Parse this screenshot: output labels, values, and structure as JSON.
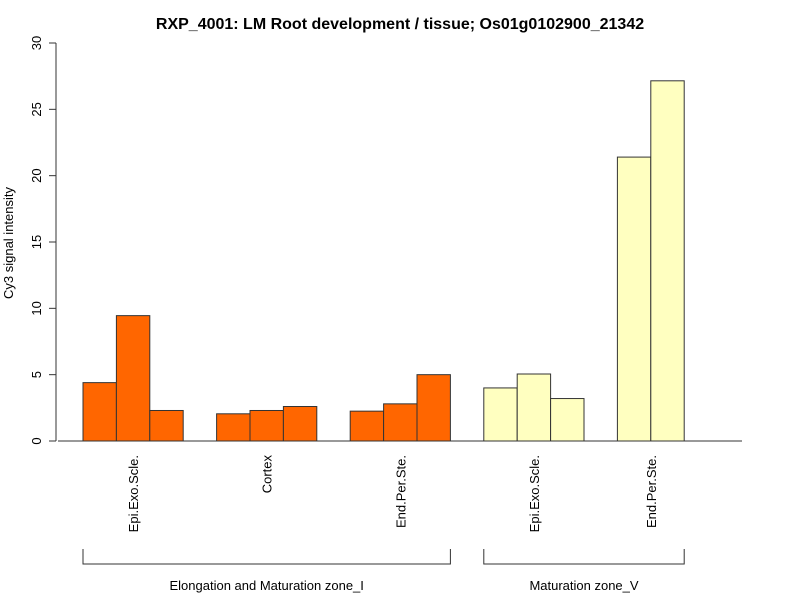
{
  "chart_data": {
    "type": "bar",
    "title": "RXP_4001: LM Root development / tissue; Os01g0102900_21342",
    "ylabel": "Cy3 signal intensity",
    "xlabel": "",
    "ylim": [
      0,
      30
    ],
    "yticks": [
      0,
      5,
      10,
      15,
      20,
      25,
      30
    ],
    "grid": false,
    "groups": [
      {
        "name": "Elongation and Maturation zone_I",
        "color": "#ff6600",
        "categories": [
          {
            "name": "Epi.Exo.Scle.",
            "values": [
              4.4,
              9.45,
              2.3
            ]
          },
          {
            "name": "Cortex",
            "values": [
              2.05,
              2.3,
              2.6
            ]
          },
          {
            "name": "End.Per.Ste.",
            "values": [
              2.25,
              2.8,
              5.0
            ]
          }
        ]
      },
      {
        "name": "Maturation zone_V",
        "color": "#ffffc0",
        "categories": [
          {
            "name": "Epi.Exo.Scle.",
            "values": [
              4.0,
              5.05,
              3.2
            ]
          },
          {
            "name": "End.Per.Ste.",
            "values": [
              21.4,
              27.15
            ]
          }
        ]
      }
    ]
  }
}
